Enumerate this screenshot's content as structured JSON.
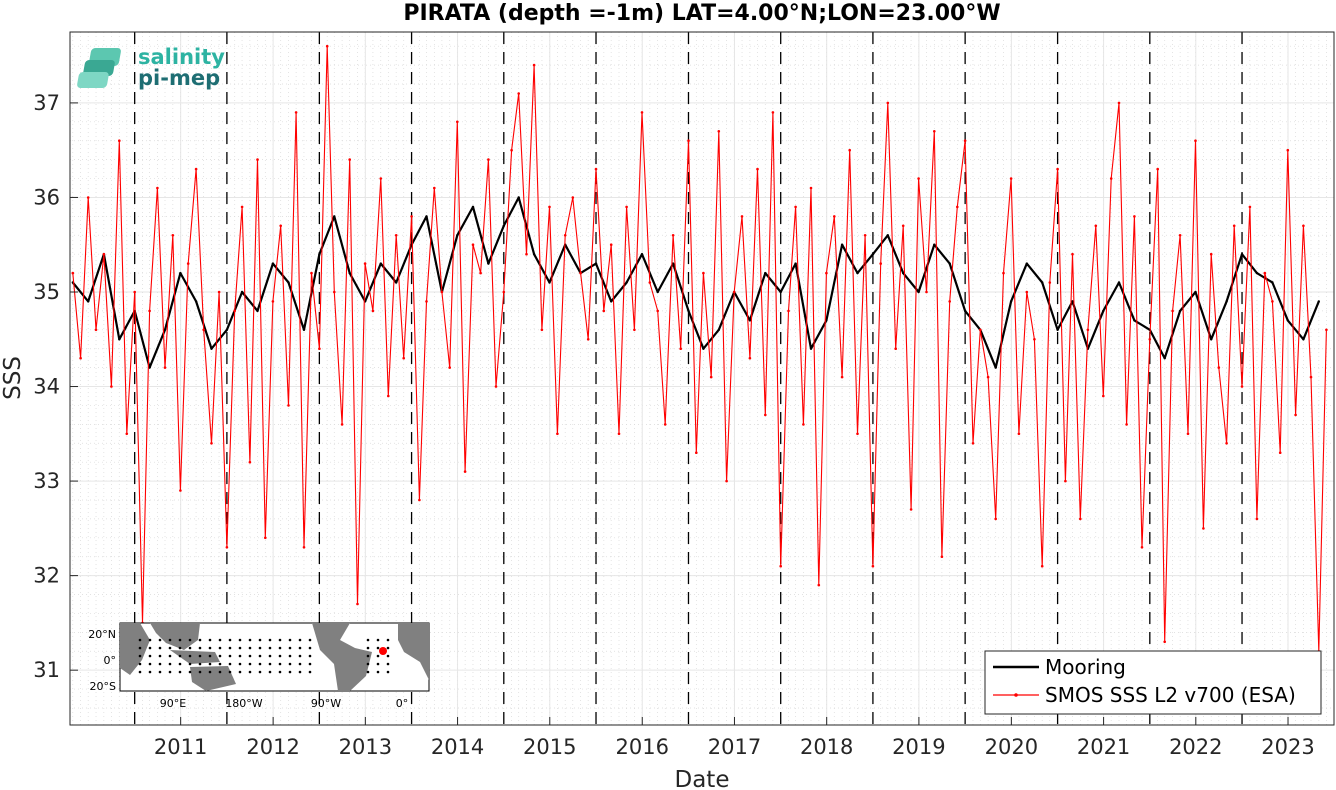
{
  "chart_data": {
    "type": "line",
    "title": "PIRATA (depth =-1m) LAT=4.00°N;LON=23.00°W",
    "xlabel": "Date",
    "ylabel": "SSS",
    "xlim": [
      "2010-04-20",
      "2023-12-31"
    ],
    "ylim": [
      30.42,
      37.75
    ],
    "x_ticks": [
      "2011",
      "2012",
      "2013",
      "2014",
      "2015",
      "2016",
      "2017",
      "2018",
      "2019",
      "2020",
      "2021",
      "2022",
      "2023"
    ],
    "y_ticks": [
      31,
      32,
      33,
      34,
      35,
      36,
      37
    ],
    "vlines_dashed": [
      "2011-01-01",
      "2012-01-01",
      "2013-01-01",
      "2014-01-01",
      "2015-01-01",
      "2016-01-01",
      "2017-01-01",
      "2018-01-01",
      "2019-01-01",
      "2020-01-01",
      "2021-01-01",
      "2022-01-01",
      "2023-01-01"
    ],
    "grid": true,
    "legend_position": "bottom-right",
    "series": [
      {
        "name": "Mooring",
        "color": "#000000",
        "x": [
          "2010-05-01",
          "2010-07-01",
          "2010-09-01",
          "2010-11-01",
          "2011-01-01",
          "2011-03-01",
          "2011-05-01",
          "2011-07-01",
          "2011-09-01",
          "2011-11-01",
          "2012-01-01",
          "2012-03-01",
          "2012-05-01",
          "2012-07-01",
          "2012-09-01",
          "2012-11-01",
          "2013-01-01",
          "2013-03-01",
          "2013-05-01",
          "2013-07-01",
          "2013-09-01",
          "2013-11-01",
          "2014-01-01",
          "2014-03-01",
          "2014-05-01",
          "2014-07-01",
          "2014-09-01",
          "2014-11-01",
          "2015-01-01",
          "2015-03-01",
          "2015-05-01",
          "2015-07-01",
          "2015-09-01",
          "2015-11-01",
          "2016-01-01",
          "2016-03-01",
          "2016-05-01",
          "2016-07-01",
          "2016-09-01",
          "2016-11-01",
          "2017-01-01",
          "2017-03-01",
          "2017-05-01",
          "2017-07-01",
          "2017-09-01",
          "2017-11-01",
          "2018-01-01",
          "2018-03-01",
          "2018-05-01",
          "2018-07-01",
          "2018-09-01",
          "2018-11-01",
          "2019-01-01",
          "2019-03-01",
          "2019-05-01",
          "2019-07-01",
          "2019-09-01",
          "2019-11-01",
          "2020-01-01",
          "2020-03-01",
          "2020-05-01",
          "2020-07-01",
          "2020-09-01",
          "2020-11-01",
          "2021-01-01",
          "2021-03-01",
          "2021-05-01",
          "2021-07-01",
          "2021-09-01",
          "2021-11-01",
          "2022-01-01",
          "2022-03-01",
          "2022-05-01",
          "2022-07-01",
          "2022-09-01",
          "2022-11-01",
          "2023-01-01",
          "2023-03-01",
          "2023-05-01",
          "2023-07-01",
          "2023-09-01",
          "2023-11-01"
        ],
        "y": [
          35.1,
          34.9,
          35.4,
          34.5,
          34.8,
          34.2,
          34.6,
          35.2,
          34.9,
          34.4,
          34.6,
          35.0,
          34.8,
          35.3,
          35.1,
          34.6,
          35.4,
          35.8,
          35.2,
          34.9,
          35.3,
          35.1,
          35.5,
          35.8,
          35.0,
          35.6,
          35.9,
          35.3,
          35.7,
          36.0,
          35.4,
          35.1,
          35.5,
          35.2,
          35.3,
          34.9,
          35.1,
          35.4,
          35.0,
          35.3,
          34.8,
          34.4,
          34.6,
          35.0,
          34.7,
          35.2,
          35.0,
          35.3,
          34.4,
          34.7,
          35.5,
          35.2,
          35.4,
          35.6,
          35.2,
          35.0,
          35.5,
          35.3,
          34.8,
          34.6,
          34.2,
          34.9,
          35.3,
          35.1,
          34.6,
          34.9,
          34.4,
          34.8,
          35.1,
          34.7,
          34.6,
          34.3,
          34.8,
          35.0,
          34.5,
          34.9,
          35.4,
          35.2,
          35.1,
          34.7,
          34.5,
          34.9
        ]
      },
      {
        "name": "SMOS SSS L2 v700 (ESA)",
        "color": "#ff0000",
        "x": [
          "2010-05-01",
          "2010-06-01",
          "2010-07-01",
          "2010-08-01",
          "2010-09-01",
          "2010-10-01",
          "2010-11-01",
          "2010-12-01",
          "2011-01-01",
          "2011-02-01",
          "2011-03-01",
          "2011-04-01",
          "2011-05-01",
          "2011-06-01",
          "2011-07-01",
          "2011-08-01",
          "2011-09-01",
          "2011-10-01",
          "2011-11-01",
          "2011-12-01",
          "2012-01-01",
          "2012-02-01",
          "2012-03-01",
          "2012-04-01",
          "2012-05-01",
          "2012-06-01",
          "2012-07-01",
          "2012-08-01",
          "2012-09-01",
          "2012-10-01",
          "2012-11-01",
          "2012-12-01",
          "2013-01-01",
          "2013-02-01",
          "2013-03-01",
          "2013-04-01",
          "2013-05-01",
          "2013-06-01",
          "2013-07-01",
          "2013-08-01",
          "2013-09-01",
          "2013-10-01",
          "2013-11-01",
          "2013-12-01",
          "2014-01-01",
          "2014-02-01",
          "2014-03-01",
          "2014-04-01",
          "2014-05-01",
          "2014-06-01",
          "2014-07-01",
          "2014-08-01",
          "2014-09-01",
          "2014-10-01",
          "2014-11-01",
          "2014-12-01",
          "2015-01-01",
          "2015-02-01",
          "2015-03-01",
          "2015-04-01",
          "2015-05-01",
          "2015-06-01",
          "2015-07-01",
          "2015-08-01",
          "2015-09-01",
          "2015-10-01",
          "2015-11-01",
          "2015-12-01",
          "2016-01-01",
          "2016-02-01",
          "2016-03-01",
          "2016-04-01",
          "2016-05-01",
          "2016-06-01",
          "2016-07-01",
          "2016-08-01",
          "2016-09-01",
          "2016-10-01",
          "2016-11-01",
          "2016-12-01",
          "2017-01-01",
          "2017-02-01",
          "2017-03-01",
          "2017-04-01",
          "2017-05-01",
          "2017-06-01",
          "2017-07-01",
          "2017-08-01",
          "2017-09-01",
          "2017-10-01",
          "2017-11-01",
          "2017-12-01",
          "2018-01-01",
          "2018-02-01",
          "2018-03-01",
          "2018-04-01",
          "2018-05-01",
          "2018-06-01",
          "2018-07-01",
          "2018-08-01",
          "2018-09-01",
          "2018-10-01",
          "2018-11-01",
          "2018-12-01",
          "2019-01-01",
          "2019-02-01",
          "2019-03-01",
          "2019-04-01",
          "2019-05-01",
          "2019-06-01",
          "2019-07-01",
          "2019-08-01",
          "2019-09-01",
          "2019-10-01",
          "2019-11-01",
          "2019-12-01",
          "2020-01-01",
          "2020-02-01",
          "2020-03-01",
          "2020-04-01",
          "2020-05-01",
          "2020-06-01",
          "2020-07-01",
          "2020-08-01",
          "2020-09-01",
          "2020-10-01",
          "2020-11-01",
          "2020-12-01",
          "2021-01-01",
          "2021-02-01",
          "2021-03-01",
          "2021-04-01",
          "2021-05-01",
          "2021-06-01",
          "2021-07-01",
          "2021-08-01",
          "2021-09-01",
          "2021-10-01",
          "2021-11-01",
          "2021-12-01",
          "2022-01-01",
          "2022-02-01",
          "2022-03-01",
          "2022-04-01",
          "2022-05-01",
          "2022-06-01",
          "2022-07-01",
          "2022-08-01",
          "2022-09-01",
          "2022-10-01",
          "2022-11-01",
          "2022-12-01",
          "2023-01-01",
          "2023-02-01",
          "2023-03-01",
          "2023-04-01",
          "2023-05-01",
          "2023-06-01",
          "2023-07-01",
          "2023-08-01",
          "2023-09-01",
          "2023-10-01",
          "2023-11-01",
          "2023-12-01"
        ],
        "y": [
          35.2,
          34.3,
          36.0,
          34.6,
          35.4,
          34.0,
          36.6,
          33.5,
          35.0,
          31.5,
          34.8,
          36.1,
          34.2,
          35.6,
          32.9,
          35.3,
          36.3,
          34.6,
          33.4,
          35.0,
          32.3,
          34.8,
          35.9,
          33.2,
          36.4,
          32.4,
          34.9,
          35.7,
          33.8,
          36.9,
          32.3,
          35.2,
          34.4,
          37.6,
          35.0,
          33.6,
          36.4,
          31.7,
          35.3,
          34.8,
          36.2,
          33.9,
          35.6,
          34.3,
          35.8,
          32.8,
          34.9,
          36.1,
          35.0,
          34.2,
          36.8,
          33.1,
          35.5,
          35.2,
          36.4,
          34.0,
          35.0,
          36.5,
          37.1,
          35.4,
          37.4,
          34.6,
          35.9,
          33.5,
          35.6,
          36.0,
          35.2,
          34.5,
          36.3,
          34.8,
          35.5,
          33.5,
          35.9,
          34.6,
          36.9,
          35.1,
          34.8,
          33.6,
          35.6,
          34.4,
          36.6,
          33.3,
          35.2,
          34.1,
          36.7,
          33.0,
          35.0,
          35.8,
          34.3,
          36.3,
          33.7,
          36.9,
          32.1,
          34.8,
          35.9,
          33.6,
          36.1,
          31.9,
          35.2,
          35.8,
          34.1,
          36.5,
          33.5,
          35.6,
          32.1,
          35.3,
          37.0,
          34.4,
          35.7,
          32.7,
          36.2,
          35.0,
          36.7,
          32.2,
          34.9,
          35.9,
          36.6,
          33.4,
          34.6,
          34.1,
          32.6,
          35.2,
          36.2,
          33.5,
          35.0,
          34.5,
          32.1,
          35.1,
          36.3,
          33.0,
          35.4,
          32.6,
          34.6,
          35.7,
          33.9,
          36.2,
          37.0,
          33.6,
          35.8,
          32.3,
          34.5,
          36.3,
          31.3,
          34.8,
          35.6,
          33.5,
          36.6,
          32.5,
          35.4,
          34.2,
          33.4,
          35.7,
          34.0,
          35.9,
          32.6,
          35.2,
          34.9,
          33.3,
          36.5,
          33.7,
          35.7,
          34.1,
          31.2,
          34.6
        ]
      }
    ]
  },
  "legend": {
    "mooring_label": "Mooring",
    "smos_label": "SMOS SSS L2 v700 (ESA)"
  },
  "logo": {
    "line1": "salinity",
    "line2": "pi-mep"
  },
  "inset_map": {
    "lat_labels": [
      "20°N",
      "0°",
      "20°S"
    ],
    "lon_labels": [
      "90°E",
      "180°W",
      "90°W",
      "0°"
    ],
    "marker_color": "#ff0000"
  }
}
